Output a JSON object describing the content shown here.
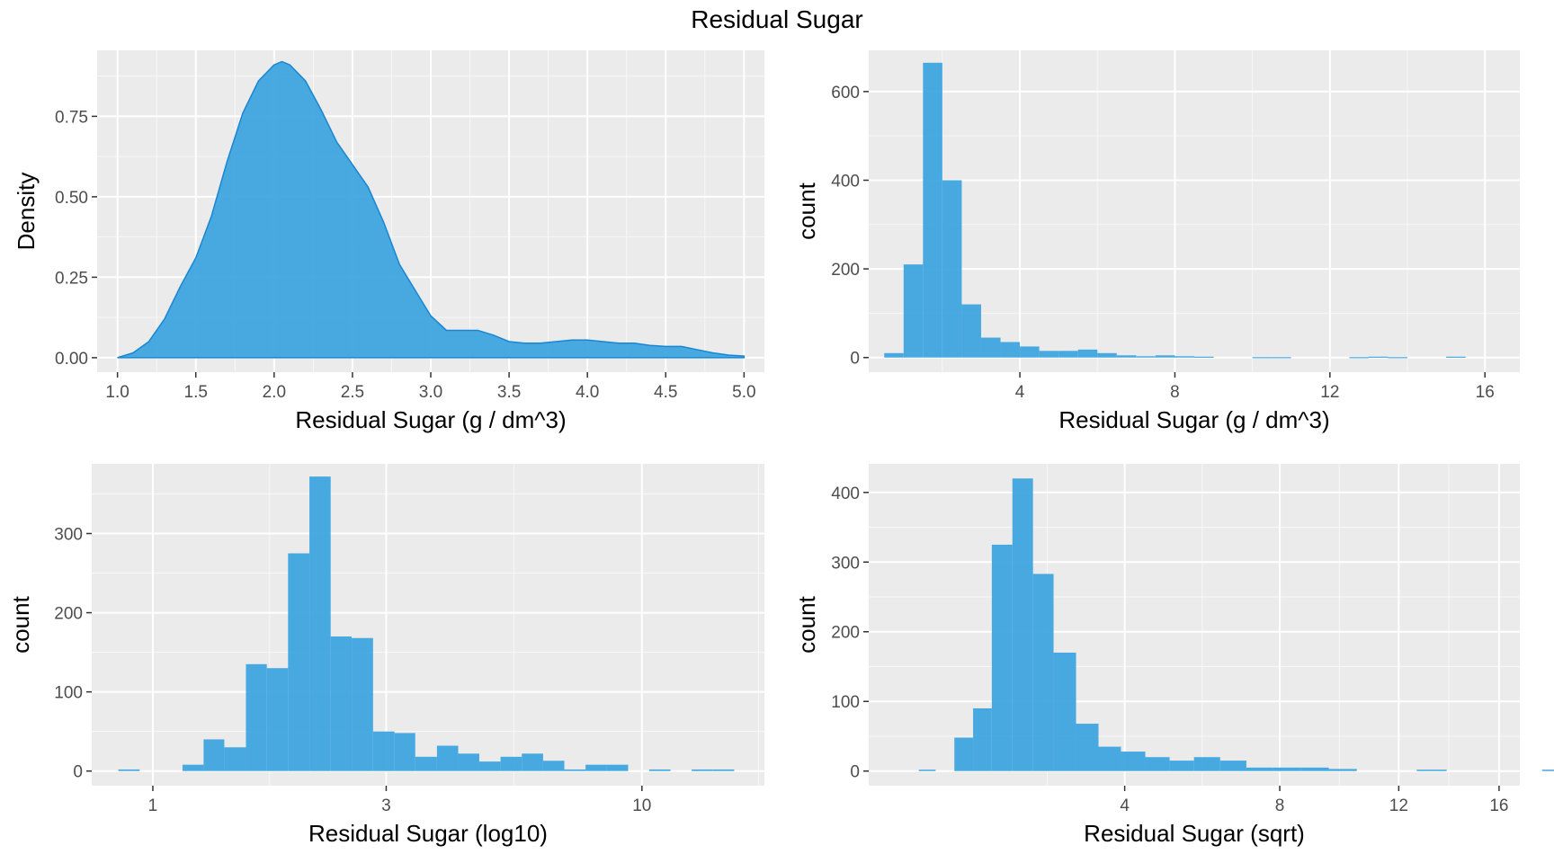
{
  "title": "Residual Sugar",
  "colors": {
    "panel": "#ebebeb",
    "grid_major": "#ffffff",
    "fill": "#3fa5e0",
    "line": "#1a86d2",
    "tick": "#333333"
  },
  "chart_data": [
    {
      "type": "area",
      "xlabel": "Residual Sugar (g / dm^3)",
      "ylabel": "Density",
      "xlim": [
        0.87,
        5.13
      ],
      "ylim": [
        -0.045,
        0.955
      ],
      "x_ticks": [
        1.0,
        1.5,
        2.0,
        2.5,
        3.0,
        3.5,
        4.0,
        4.5,
        5.0
      ],
      "x_tick_labels": [
        "1.0",
        "1.5",
        "2.0",
        "2.5",
        "3.0",
        "3.5",
        "4.0",
        "4.5",
        "5.0"
      ],
      "y_ticks": [
        0.0,
        0.25,
        0.5,
        0.75
      ],
      "y_tick_labels": [
        "0.00",
        "0.25",
        "0.50",
        "0.75"
      ],
      "points": [
        [
          1.0,
          0.0
        ],
        [
          1.1,
          0.015
        ],
        [
          1.2,
          0.05
        ],
        [
          1.3,
          0.12
        ],
        [
          1.4,
          0.22
        ],
        [
          1.5,
          0.31
        ],
        [
          1.6,
          0.44
        ],
        [
          1.7,
          0.61
        ],
        [
          1.8,
          0.76
        ],
        [
          1.9,
          0.86
        ],
        [
          2.0,
          0.91
        ],
        [
          2.05,
          0.92
        ],
        [
          2.1,
          0.91
        ],
        [
          2.2,
          0.86
        ],
        [
          2.3,
          0.77
        ],
        [
          2.4,
          0.67
        ],
        [
          2.5,
          0.6
        ],
        [
          2.6,
          0.53
        ],
        [
          2.7,
          0.42
        ],
        [
          2.8,
          0.29
        ],
        [
          2.9,
          0.21
        ],
        [
          3.0,
          0.13
        ],
        [
          3.1,
          0.085
        ],
        [
          3.2,
          0.085
        ],
        [
          3.3,
          0.085
        ],
        [
          3.4,
          0.07
        ],
        [
          3.5,
          0.05
        ],
        [
          3.6,
          0.045
        ],
        [
          3.7,
          0.045
        ],
        [
          3.8,
          0.05
        ],
        [
          3.9,
          0.055
        ],
        [
          4.0,
          0.055
        ],
        [
          4.1,
          0.05
        ],
        [
          4.2,
          0.045
        ],
        [
          4.3,
          0.045
        ],
        [
          4.4,
          0.038
        ],
        [
          4.5,
          0.035
        ],
        [
          4.6,
          0.035
        ],
        [
          4.7,
          0.025
        ],
        [
          4.8,
          0.015
        ],
        [
          4.9,
          0.008
        ],
        [
          5.0,
          0.005
        ]
      ]
    },
    {
      "type": "bar",
      "xlabel": "Residual Sugar (g / dm^3)",
      "ylabel": "count",
      "xlim": [
        0.1,
        16.9
      ],
      "ylim": [
        -33,
        693
      ],
      "x_ticks": [
        4,
        8,
        12,
        16
      ],
      "x_tick_labels": [
        "4",
        "8",
        "12",
        "16"
      ],
      "y_ticks": [
        0,
        200,
        400,
        600
      ],
      "y_tick_labels": [
        "0",
        "200",
        "400",
        "600"
      ],
      "bin_width": 0.5,
      "bins": [
        [
          0.75,
          10
        ],
        [
          1.25,
          210
        ],
        [
          1.75,
          665
        ],
        [
          2.25,
          400
        ],
        [
          2.75,
          120
        ],
        [
          3.25,
          45
        ],
        [
          3.75,
          35
        ],
        [
          4.25,
          25
        ],
        [
          4.75,
          15
        ],
        [
          5.25,
          15
        ],
        [
          5.75,
          18
        ],
        [
          6.25,
          10
        ],
        [
          6.75,
          5
        ],
        [
          7.25,
          3
        ],
        [
          7.75,
          5
        ],
        [
          8.25,
          3
        ],
        [
          8.75,
          2
        ],
        [
          10.25,
          1
        ],
        [
          10.75,
          1
        ],
        [
          12.75,
          1
        ],
        [
          13.25,
          2
        ],
        [
          13.75,
          1
        ],
        [
          15.25,
          2
        ]
      ]
    },
    {
      "type": "bar",
      "xlabel": "Residual Sugar (log10)",
      "ylabel": "count",
      "log_x": true,
      "xlim": [
        0.75,
        17.8
      ],
      "ylim": [
        -18.5,
        388
      ],
      "x_ticks": [
        1,
        3,
        10
      ],
      "x_tick_labels": [
        "1",
        "3",
        "10"
      ],
      "y_ticks": [
        0,
        100,
        200,
        300
      ],
      "y_tick_labels": [
        "0",
        "100",
        "200",
        "300"
      ],
      "bin_edges": [
        0.85,
        0.94,
        1.04,
        1.15,
        1.27,
        1.4,
        1.55,
        1.71,
        1.89,
        2.09,
        2.31,
        2.55,
        2.82,
        3.12,
        3.44,
        3.81,
        4.21,
        4.65,
        5.14,
        5.68,
        6.28,
        6.94,
        7.67,
        8.48,
        9.37,
        10.35,
        11.44,
        12.64,
        13.97,
        15.44
      ],
      "counts": [
        2,
        0,
        0,
        8,
        40,
        30,
        135,
        130,
        275,
        372,
        170,
        168,
        50,
        48,
        18,
        32,
        22,
        12,
        18,
        22,
        13,
        2,
        8,
        8,
        0,
        2,
        0,
        2,
        2
      ]
    },
    {
      "type": "bar",
      "xlabel": "Residual Sugar (sqrt)",
      "ylabel": "count",
      "sqrt_x": true,
      "xlim": [
        0.4,
        16.9
      ],
      "ylim": [
        -21,
        441
      ],
      "x_ticks": [
        4,
        8,
        12,
        16
      ],
      "x_tick_labels": [
        "4",
        "8",
        "12",
        "16"
      ],
      "y_ticks": [
        0,
        100,
        200,
        300,
        400
      ],
      "y_tick_labels": [
        "0",
        "100",
        "200",
        "300",
        "400"
      ],
      "bin_edges_sqrt": [
        0.9,
        0.99,
        1.09,
        1.19,
        1.29,
        1.4,
        1.51,
        1.62,
        1.74,
        1.86,
        1.98,
        2.11,
        2.24,
        2.37,
        2.51,
        2.65,
        2.79,
        2.94,
        3.09,
        3.24,
        3.4,
        3.56,
        3.72,
        3.89,
        4.06,
        4.23,
        4.4,
        4.57,
        4.75,
        4.94,
        5.12
      ],
      "counts": [
        2,
        0,
        48,
        90,
        325,
        420,
        283,
        170,
        68,
        35,
        28,
        20,
        15,
        20,
        15,
        5,
        5,
        5,
        3,
        0,
        0,
        2,
        0,
        0,
        0,
        2,
        3,
        5,
        0,
        3
      ]
    }
  ]
}
